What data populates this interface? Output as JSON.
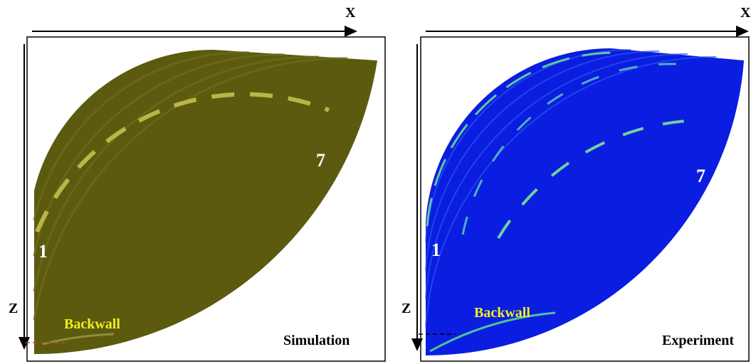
{
  "panels": [
    {
      "x_axis_label": "X",
      "z_axis_label": "Z",
      "reflector_labels": [
        "1",
        "7"
      ],
      "backwall_label": "Backwall",
      "caption": "Simulation"
    },
    {
      "x_axis_label": "X",
      "z_axis_label": "Z",
      "reflector_labels": [
        "1",
        "7"
      ],
      "backwall_label": "Backwall",
      "caption": "Experiment"
    }
  ]
}
